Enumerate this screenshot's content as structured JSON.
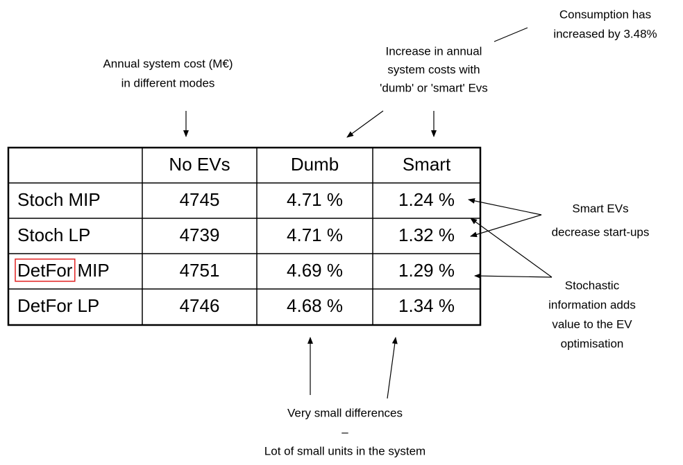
{
  "annotations": {
    "annual_cost": [
      "Annual system cost (M€)",
      "in different modes"
    ],
    "consumption": [
      "Consumption has",
      "increased by 3.48%"
    ],
    "increase": [
      "Increase in annual",
      "system costs with",
      "'dumb' or 'smart' Evs"
    ],
    "smart_evs": [
      "Smart EVs",
      "decrease start-ups"
    ],
    "stochastic": [
      "Stochastic",
      "information adds",
      "value to the EV",
      "optimisation"
    ],
    "small_differences": [
      "Very small differences",
      "–",
      "Lot of small units in the system"
    ]
  },
  "table": {
    "header": [
      "No EVs",
      "Dumb",
      "Smart"
    ],
    "rows": [
      {
        "label": [
          "Stoch",
          "MIP"
        ],
        "cells": [
          4745,
          "4.71 %",
          "1.24 %"
        ]
      },
      {
        "label": [
          "Stoch",
          "LP"
        ],
        "cells": [
          4739,
          "4.71 %",
          "1.32 %"
        ]
      },
      {
        "label": [
          "DetFor",
          "MIP"
        ],
        "highlight_word": 0,
        "cells": [
          4751,
          "4.69 %",
          "1.29 %"
        ]
      },
      {
        "label": [
          "DetFor",
          "LP"
        ],
        "cells": [
          4746,
          "4.68 %",
          "1.34 %"
        ]
      }
    ]
  }
}
